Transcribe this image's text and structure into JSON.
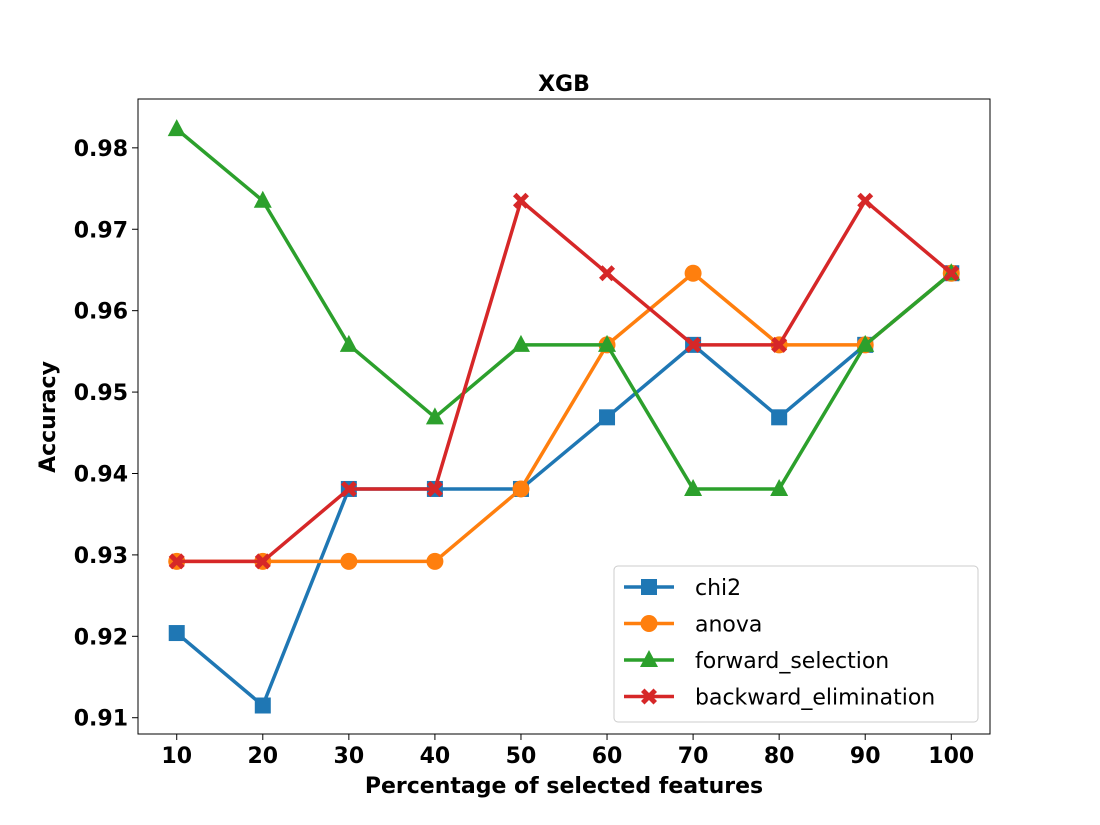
{
  "chart_data": {
    "type": "line",
    "title": "XGB",
    "xlabel": "Percentage of selected features",
    "ylabel": "Accuracy",
    "x": [
      10,
      20,
      30,
      40,
      50,
      60,
      70,
      80,
      90,
      100
    ],
    "xticks": [
      "10",
      "20",
      "30",
      "40",
      "50",
      "60",
      "70",
      "80",
      "90",
      "100"
    ],
    "ylim": [
      0.908,
      0.986
    ],
    "yticks": [
      0.91,
      0.92,
      0.93,
      0.94,
      0.95,
      0.96,
      0.97,
      0.98
    ],
    "ytick_labels": [
      "0.91",
      "0.92",
      "0.93",
      "0.94",
      "0.95",
      "0.96",
      "0.97",
      "0.98"
    ],
    "grid": false,
    "legend_position": "bottom-right",
    "series": [
      {
        "name": "chi2",
        "color": "#1f77b4",
        "marker": "square",
        "values": [
          0.9204,
          0.9115,
          0.9381,
          0.9381,
          0.9381,
          0.9469,
          0.9558,
          0.9469,
          0.9558,
          0.9646
        ]
      },
      {
        "name": "anova",
        "color": "#ff7f0e",
        "marker": "circle",
        "values": [
          0.9292,
          0.9292,
          0.9292,
          0.9292,
          0.9381,
          0.9558,
          0.9646,
          0.9558,
          0.9558,
          0.9646
        ]
      },
      {
        "name": "forward_selection",
        "color": "#2ca02c",
        "marker": "triangle",
        "values": [
          0.9823,
          0.9735,
          0.9558,
          0.9469,
          0.9558,
          0.9558,
          0.9381,
          0.9381,
          0.9558,
          0.9646
        ]
      },
      {
        "name": "backward_elimination",
        "color": "#d62728",
        "marker": "x",
        "values": [
          0.9292,
          0.9292,
          0.9381,
          0.9381,
          0.9735,
          0.9646,
          0.9558,
          0.9558,
          0.9735,
          0.9646
        ]
      }
    ]
  }
}
